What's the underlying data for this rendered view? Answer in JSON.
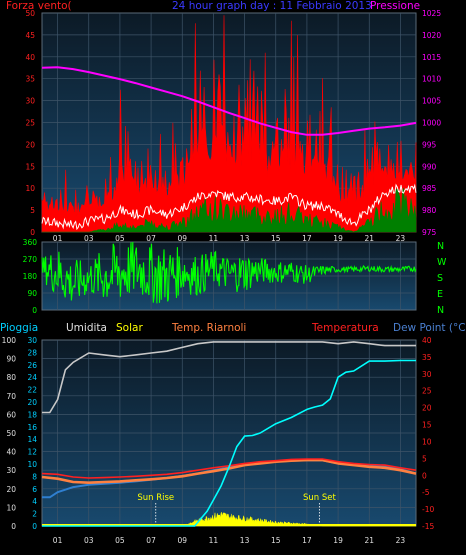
{
  "colors": {
    "background": "#000000",
    "plot_bg_dark": "#0c1a26",
    "plot_bg_light": "#18496e",
    "wind_max": "#ff0000",
    "wind_avg": "#ffffff",
    "wind_min": "#007f00",
    "pressure": "#ff00ff",
    "direction": "#00ff00",
    "humidity": "#c8c8c8",
    "solar": "#ffff00",
    "temperature": "#ff2020",
    "feels_like": "#ff8040",
    "dew_point": "#2f7fd0",
    "rain": "#00ffff",
    "title_blue": "#3a3aff",
    "left_axis_red": "#ff2020",
    "right_axis_magenta": "#ff00ff",
    "dew_label": "#4a7fd0",
    "rain_label": "#00cfff"
  },
  "chart_data": [
    {
      "type": "line",
      "title": "24 hour graph day : 11 Febbraio 2013",
      "left_label": "Forza vento(",
      "right_label": "Pressione",
      "x_ticks": [
        "01",
        "03",
        "05",
        "07",
        "09",
        "11",
        "13",
        "15",
        "17",
        "19",
        "21",
        "23"
      ],
      "y_left_ticks": [
        "0",
        "5",
        "10",
        "15",
        "20",
        "25",
        "30",
        "35",
        "40",
        "45",
        "50"
      ],
      "y_left_range": [
        0,
        50
      ],
      "y_right_ticks": [
        "975",
        "980",
        "985",
        "990",
        "995",
        "1000",
        "1005",
        "1010",
        "1015",
        "1020",
        "1025"
      ],
      "y_right_range": [
        975,
        1025
      ],
      "x_range": [
        0,
        24
      ],
      "grid": true,
      "series": [
        {
          "key": "wind_max",
          "axis": "left",
          "x": [
            0,
            1,
            2,
            3,
            4,
            5,
            6,
            7,
            8,
            9,
            10,
            11,
            12,
            13,
            14,
            15,
            16,
            17,
            18,
            19,
            20,
            21,
            22,
            23,
            24
          ],
          "values": [
            10,
            8,
            7,
            10,
            8,
            17,
            13,
            17,
            12,
            18,
            27,
            30,
            26,
            27,
            25,
            22,
            27,
            20,
            20,
            14,
            10,
            17,
            16,
            15,
            15
          ]
        },
        {
          "key": "wind_avg",
          "axis": "left",
          "x": [
            0,
            1,
            2,
            3,
            4,
            5,
            6,
            7,
            8,
            9,
            10,
            11,
            12,
            13,
            14,
            15,
            16,
            17,
            18,
            19,
            20,
            21,
            22,
            23,
            24
          ],
          "values": [
            2.5,
            2,
            1.5,
            2.5,
            3,
            5,
            4,
            5,
            4,
            5.5,
            8,
            9,
            8,
            8,
            7.5,
            7,
            8,
            6,
            6,
            4,
            2,
            5,
            9,
            10,
            10
          ]
        },
        {
          "key": "wind_min",
          "axis": "left",
          "x": [
            0,
            1,
            2,
            3,
            4,
            5,
            6,
            7,
            8,
            9,
            10,
            11,
            12,
            13,
            14,
            15,
            16,
            17,
            18,
            19,
            20,
            21,
            22,
            23,
            24
          ],
          "values": [
            0,
            0,
            0,
            0,
            0.5,
            1.5,
            1,
            2,
            1,
            2,
            4,
            5,
            4,
            4,
            3.5,
            3,
            4,
            2.5,
            2,
            1,
            0,
            2,
            5,
            6,
            6
          ]
        },
        {
          "key": "pressure",
          "axis": "right",
          "x": [
            0,
            1,
            2,
            3,
            4,
            5,
            6,
            7,
            8,
            9,
            10,
            11,
            12,
            13,
            14,
            15,
            16,
            17,
            18,
            19,
            20,
            21,
            22,
            23,
            24
          ],
          "values": [
            1012.5,
            1012.6,
            1012.2,
            1011.5,
            1010.7,
            1009.9,
            1009.0,
            1008.0,
            1007.0,
            1006.0,
            1004.8,
            1003.5,
            1002.2,
            1001.0,
            999.8,
            998.8,
            997.8,
            997.2,
            997.2,
            997.6,
            998.1,
            998.6,
            998.9,
            999.3,
            999.9
          ]
        }
      ]
    },
    {
      "type": "line",
      "title": "",
      "right_labels": [
        "N",
        "W",
        "S",
        "E",
        "N"
      ],
      "y_ticks": [
        "0",
        "90",
        "180",
        "270",
        "360"
      ],
      "y_range": [
        0,
        360
      ],
      "x_ticks": [
        "01",
        "03",
        "05",
        "07",
        "09",
        "11",
        "13",
        "15",
        "17",
        "19",
        "21",
        "23"
      ],
      "x_range": [
        0,
        24
      ],
      "grid": true,
      "series": [
        {
          "key": "direction",
          "x": [
            0,
            1,
            2,
            3,
            4,
            5,
            6,
            7,
            8,
            9,
            10,
            11,
            12,
            13,
            14,
            15,
            16,
            17,
            18,
            19,
            20,
            21,
            22,
            23,
            24
          ],
          "values": [
            220,
            200,
            140,
            170,
            180,
            200,
            220,
            195,
            175,
            210,
            180,
            220,
            190,
            200,
            210,
            200,
            205,
            185,
            210,
            215,
            215,
            220,
            215,
            215,
            220
          ],
          "spread": [
            60,
            140,
            130,
            90,
            150,
            170,
            150,
            160,
            170,
            120,
            110,
            100,
            90,
            110,
            70,
            60,
            60,
            50,
            25,
            15,
            15,
            15,
            15,
            15,
            15
          ]
        }
      ]
    },
    {
      "type": "line",
      "legend": [
        "Pioggia",
        "Umidita",
        "Solar",
        "Temp. Riarnoli",
        "Temperatura",
        "Dew Point (°C)"
      ],
      "x_ticks": [
        "01",
        "03",
        "05",
        "07",
        "09",
        "11",
        "13",
        "15",
        "17",
        "19",
        "21",
        "23"
      ],
      "x_range": [
        0,
        24
      ],
      "y_left_ticks": [
        "0",
        "10",
        "20",
        "30",
        "40",
        "50",
        "60",
        "70",
        "80",
        "90",
        "100"
      ],
      "y_left_range": [
        0,
        100
      ],
      "y_mid_ticks": [
        "0",
        "2",
        "4",
        "6",
        "8",
        "10",
        "12",
        "14",
        "16",
        "18",
        "20",
        "22",
        "24",
        "26",
        "28",
        "30"
      ],
      "y_mid_range": [
        0,
        30
      ],
      "y_right_ticks": [
        "-15",
        "-10",
        "-5",
        "0",
        "5",
        "10",
        "15",
        "20",
        "25",
        "30",
        "35",
        "40"
      ],
      "y_right_range": [
        -15,
        40
      ],
      "annotations": [
        {
          "text": "Sun Rise",
          "x": 7.3
        },
        {
          "text": "Sun Set",
          "x": 17.8
        }
      ],
      "grid": true,
      "series": [
        {
          "key": "humidity",
          "axis": "left",
          "x": [
            0,
            0.5,
            1,
            1.5,
            2,
            3,
            4,
            5,
            6,
            7,
            8,
            9,
            10,
            11,
            12,
            13,
            14,
            15,
            16,
            17,
            18,
            19,
            20,
            21,
            22,
            23,
            24
          ],
          "values": [
            61,
            61,
            68,
            84,
            88,
            93,
            92,
            91,
            92,
            93,
            94,
            96,
            98,
            99,
            99,
            99,
            99,
            99,
            99,
            99,
            99,
            98,
            99,
            98,
            97,
            97,
            97
          ]
        },
        {
          "key": "rain",
          "axis": "mid",
          "x": [
            0,
            9.8,
            10.2,
            10.6,
            11,
            11.5,
            12,
            12.5,
            13,
            13.5,
            14,
            15,
            16,
            17,
            17.5,
            18,
            18.5,
            19,
            19.5,
            20,
            21,
            22,
            23,
            24
          ],
          "values": [
            0,
            0,
            1.2,
            2.4,
            4.2,
            6.5,
            9.5,
            12.8,
            14.5,
            14.6,
            15,
            16.5,
            17.5,
            18.8,
            19.2,
            19.5,
            20.5,
            24,
            24.8,
            25,
            26.6,
            26.6,
            26.7,
            26.7
          ]
        },
        {
          "key": "solar",
          "axis": "left",
          "x": [
            0,
            9,
            10,
            11,
            11.5,
            12,
            13,
            14,
            15,
            16,
            17,
            18,
            24
          ],
          "values": [
            0,
            0,
            3,
            5,
            6,
            5,
            4,
            3,
            2,
            1.5,
            1,
            0,
            0
          ]
        },
        {
          "key": "feels_like",
          "axis": "right",
          "x": [
            0,
            1,
            2,
            3,
            4,
            5,
            6,
            7,
            8,
            9,
            10,
            11,
            12,
            13,
            14,
            15,
            16,
            17,
            18,
            19,
            20,
            21,
            22,
            23,
            24
          ],
          "values": [
            -0.5,
            -1,
            -2,
            -2.2,
            -2,
            -1.8,
            -1.5,
            -1.2,
            -0.8,
            -0.3,
            0.5,
            1.2,
            2,
            3,
            3.5,
            4,
            4.3,
            4.5,
            4.5,
            3.5,
            3,
            2.5,
            2.2,
            1.5,
            0.5
          ]
        },
        {
          "key": "temperature",
          "axis": "right",
          "x": [
            0,
            1,
            2,
            3,
            4,
            5,
            6,
            7,
            8,
            9,
            10,
            11,
            12,
            13,
            14,
            15,
            16,
            17,
            18,
            19,
            20,
            21,
            22,
            23,
            24
          ],
          "values": [
            0.5,
            0.3,
            -0.5,
            -0.8,
            -0.7,
            -0.5,
            -0.3,
            0,
            0.3,
            0.8,
            1.5,
            2.2,
            2.8,
            3.5,
            4,
            4.3,
            4.7,
            4.8,
            4.8,
            4,
            3.5,
            3.2,
            3,
            2.2,
            1.5
          ]
        },
        {
          "key": "dew_point",
          "axis": "right",
          "x": [
            0,
            0.5,
            1,
            2,
            3,
            4,
            5,
            6,
            7,
            8,
            9,
            10,
            11,
            12,
            13,
            14,
            15,
            16,
            17,
            18,
            19,
            20,
            21,
            22,
            23,
            24
          ],
          "values": [
            -6.5,
            -6.5,
            -5,
            -3.5,
            -2.8,
            -2.5,
            -2.2,
            -1.8,
            -1.3,
            -0.8,
            -0.2,
            0.5,
            1.5,
            2.3,
            3.2,
            3.7,
            4,
            4.3,
            4.4,
            4.4,
            3.5,
            3.2,
            2.8,
            2.5,
            1.8,
            0.5
          ]
        }
      ]
    }
  ]
}
